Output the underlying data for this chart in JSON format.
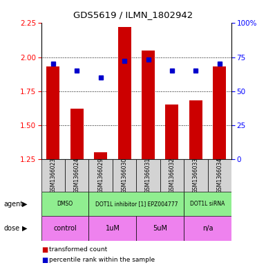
{
  "title": "GDS5619 / ILMN_1802942",
  "samples": [
    "GSM1366023",
    "GSM1366024",
    "GSM1366029",
    "GSM1366030",
    "GSM1366031",
    "GSM1366032",
    "GSM1366033",
    "GSM1366034"
  ],
  "bar_values": [
    1.93,
    1.62,
    1.3,
    2.22,
    2.05,
    1.65,
    1.68,
    1.93
  ],
  "dot_values": [
    70,
    65,
    60,
    72,
    73,
    65,
    65,
    70
  ],
  "ylim_left": [
    1.25,
    2.25
  ],
  "ylim_right": [
    0,
    100
  ],
  "yticks_left": [
    1.25,
    1.5,
    1.75,
    2.0,
    2.25
  ],
  "yticks_right": [
    0,
    25,
    50,
    75,
    100
  ],
  "ytick_labels_right": [
    "0",
    "25",
    "50",
    "75",
    "100%"
  ],
  "bar_color": "#cc0000",
  "dot_color": "#0000cc",
  "agent_row": [
    {
      "label": "DMSO",
      "span": [
        0,
        2
      ],
      "color": "#90ee90"
    },
    {
      "label": "DOT1L inhibitor [1] EPZ004777",
      "span": [
        2,
        6
      ],
      "color": "#90ee90"
    },
    {
      "label": "DOT1L siRNA",
      "span": [
        6,
        8
      ],
      "color": "#90ee90"
    }
  ],
  "dose_row": [
    {
      "label": "control",
      "span": [
        0,
        2
      ],
      "color": "#ee82ee"
    },
    {
      "label": "1uM",
      "span": [
        2,
        4
      ],
      "color": "#ee82ee"
    },
    {
      "label": "5uM",
      "span": [
        4,
        6
      ],
      "color": "#ee82ee"
    },
    {
      "label": "n/a",
      "span": [
        6,
        8
      ],
      "color": "#ee82ee"
    }
  ],
  "legend_items": [
    {
      "color": "#cc0000",
      "label": "transformed count"
    },
    {
      "color": "#0000cc",
      "label": "percentile rank within the sample"
    }
  ],
  "bar_width": 0.55,
  "background_sample": "#d3d3d3"
}
